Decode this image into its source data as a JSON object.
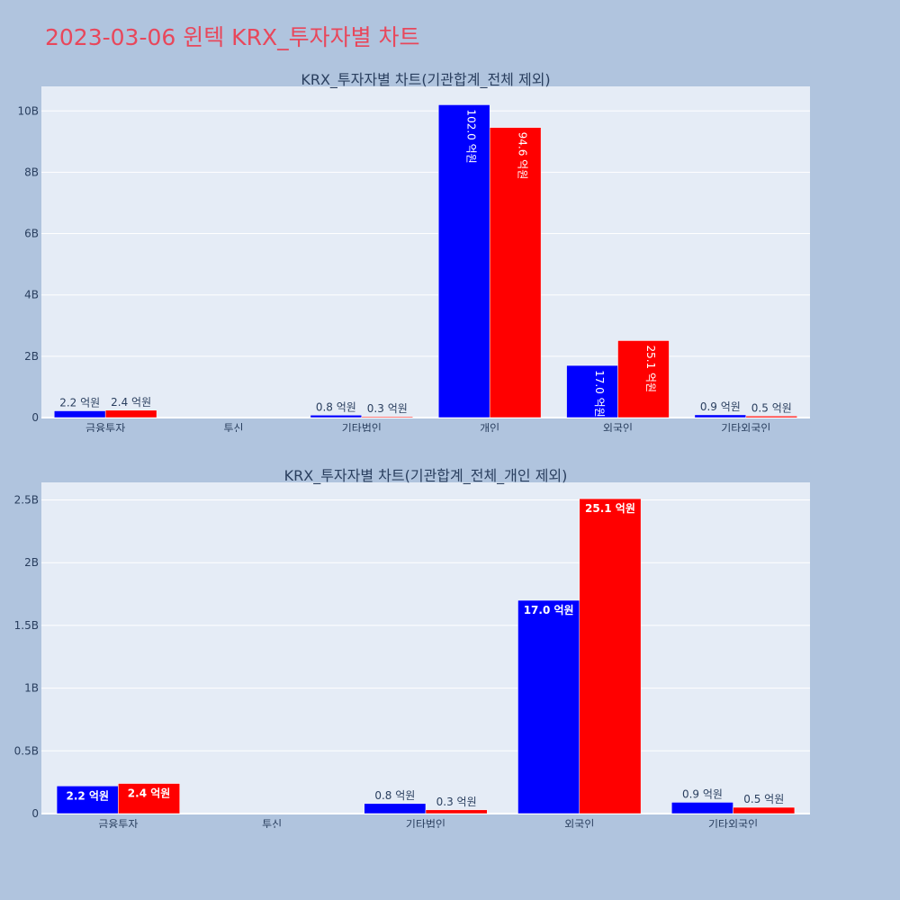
{
  "page_title": "2023-03-06 윈텍 KRX_투자자별 차트",
  "chart_data": [
    {
      "type": "bar",
      "title": "KRX_투자자별 차트(기관합계_전체 제외)",
      "categories": [
        "금융투자",
        "투신",
        "기타법인",
        "개인",
        "외국인",
        "기타외국인"
      ],
      "series": [
        {
          "color": "#0000ff",
          "values": [
            220000000,
            0,
            80000000,
            10200000000,
            1700000000,
            90000000
          ],
          "labels": [
            "2.2 억원",
            "",
            "0.8 억원",
            "102.0 억원",
            "17.0 억원",
            "0.9 억원"
          ]
        },
        {
          "color": "#ff0000",
          "values": [
            240000000,
            0,
            30000000,
            9460000000,
            2510000000,
            50000000
          ],
          "labels": [
            "2.4 억원",
            "",
            "0.3 억원",
            "94.6 억원",
            "25.1 억원",
            "0.5 억원"
          ]
        }
      ],
      "yticks": [
        0,
        2000000000,
        4000000000,
        6000000000,
        8000000000,
        10000000000
      ],
      "ytick_labels": [
        "0",
        "2B",
        "4B",
        "6B",
        "8B",
        "10B"
      ],
      "ylim": [
        0,
        10800000000
      ],
      "inside_label_orientation": "vertical",
      "grid": true
    },
    {
      "type": "bar",
      "title": "KRX_투자자별 차트(기관합계_전체_개인 제외)",
      "categories": [
        "금융투자",
        "투신",
        "기타법인",
        "외국인",
        "기타외국인"
      ],
      "series": [
        {
          "color": "#0000ff",
          "values": [
            220000000,
            0,
            80000000,
            1700000000,
            90000000
          ],
          "labels": [
            "2.2 억원",
            "",
            "0.8 억원",
            "17.0 억원",
            "0.9 억원"
          ]
        },
        {
          "color": "#ff0000",
          "values": [
            240000000,
            0,
            30000000,
            2510000000,
            50000000
          ],
          "labels": [
            "2.4 억원",
            "",
            "0.3 억원",
            "25.1 억원",
            "0.5 억원"
          ]
        }
      ],
      "yticks": [
        0,
        500000000,
        1000000000,
        1500000000,
        2000000000,
        2500000000
      ],
      "ytick_labels": [
        "0",
        "0.5B",
        "1B",
        "1.5B",
        "2B",
        "2.5B"
      ],
      "ylim": [
        0,
        2640000000
      ],
      "inside_label_orientation": "horizontal",
      "grid": true
    }
  ]
}
